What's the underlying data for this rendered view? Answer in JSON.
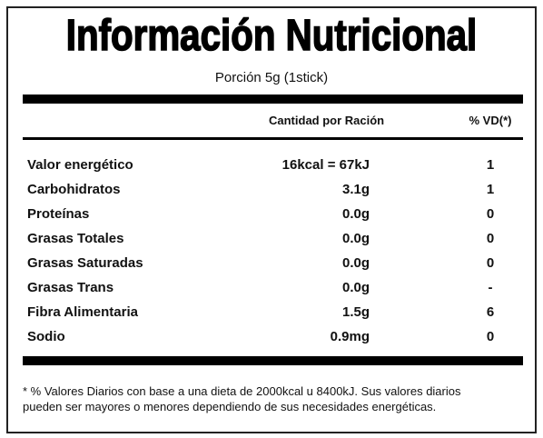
{
  "title": "Información Nutricional",
  "subtitle": "Porción 5g (1stick)",
  "table": {
    "columns": [
      "Cantidad por Ración",
      "% VD(*)"
    ],
    "rows": [
      [
        "Valor energético",
        "16kcal = 67kJ",
        "1"
      ],
      [
        "Carbohidratos",
        "3.1g",
        "1"
      ],
      [
        "Proteínas",
        "0.0g",
        "0"
      ],
      [
        "Grasas Totales",
        "0.0g",
        "0"
      ],
      [
        "Grasas Saturadas",
        "0.0g",
        "0"
      ],
      [
        "Grasas Trans",
        "0.0g",
        "-"
      ],
      [
        "Fibra Alimentaria",
        "1.5g",
        "6"
      ],
      [
        "Sodio",
        "0.9mg",
        "0"
      ]
    ]
  },
  "footnote": [
    "* % Valores Diarios con base a una dieta de 2000kcal u 8400kJ. Sus valores diarios",
    "pueden ser mayores o menores dependiendo de sus necesidades energéticas."
  ]
}
